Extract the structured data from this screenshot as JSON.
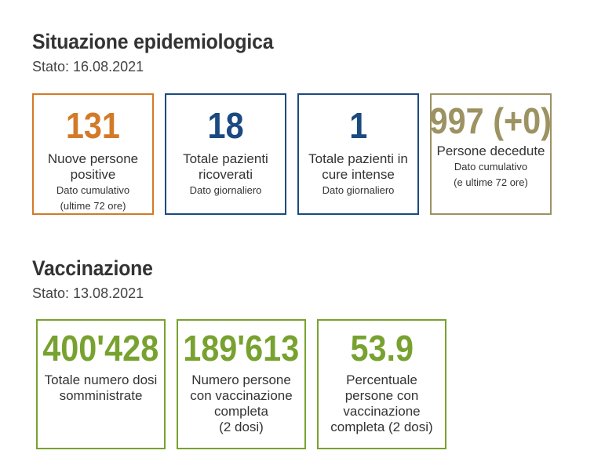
{
  "epidemiology": {
    "title": "Situazione epidemiologica",
    "date": "Stato: 16.08.2021",
    "cards": [
      {
        "value": "131",
        "label_lines": [
          "Nuove persone",
          "positive"
        ],
        "note_lines": [
          "Dato cumulativo",
          "(ultime 72 ore)"
        ],
        "color": "#d37a28"
      },
      {
        "value": "18",
        "label_lines": [
          "Totale pazienti",
          "ricoverati"
        ],
        "note_lines": [
          "Dato giornaliero"
        ],
        "color": "#1a4a80"
      },
      {
        "value": "1",
        "label_lines": [
          "Totale pazienti in",
          "cure intense"
        ],
        "note_lines": [
          "Dato giornaliero"
        ],
        "color": "#1a4a80"
      },
      {
        "value": "997 (+0)",
        "label_lines": [
          "Persone decedute"
        ],
        "note_lines": [
          "Dato cumulativo",
          "(e ultime 72 ore)"
        ],
        "color": "#9c9262"
      }
    ]
  },
  "vaccination": {
    "title": "Vaccinazione",
    "date": "Stato: 13.08.2021",
    "cards": [
      {
        "value": "400'428",
        "label_lines": [
          "Totale numero dosi",
          "somministrate"
        ],
        "color": "#78a22f"
      },
      {
        "value": "189'613",
        "label_lines": [
          "Numero persone",
          "con vaccinazione",
          "completa",
          "(2 dosi)"
        ],
        "color": "#78a22f"
      },
      {
        "value": "53.9",
        "label_lines": [
          "Percentuale",
          "persone con",
          "vaccinazione",
          "completa (2 dosi)"
        ],
        "color": "#78a22f"
      }
    ]
  }
}
